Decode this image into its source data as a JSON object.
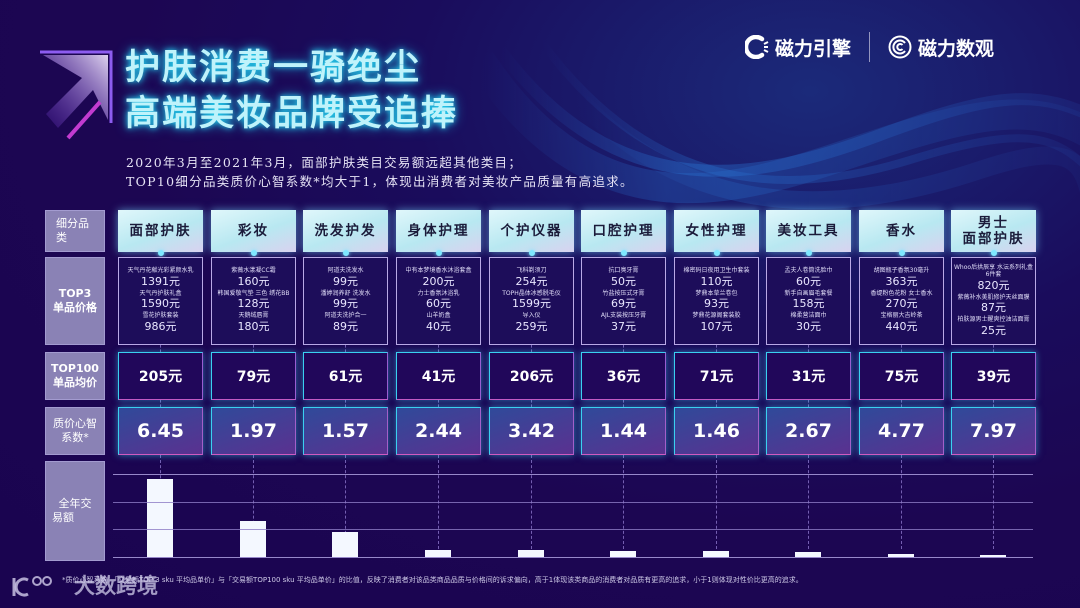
{
  "title": {
    "line1": "护肤消费一骑绝尘",
    "line2": "高端美妆品牌受追捧"
  },
  "subtitle": {
    "line1": "2020年3月至2021年3月，面部护肤类目交易额远超其他类目；",
    "line2": "TOP10细分品类质价心智系数*均大于1，体现出消费者对美妆产品质量有高追求。"
  },
  "brands": [
    {
      "name": "磁力引擎",
      "icon": "c-spinner-icon"
    },
    {
      "name": "磁力数观",
      "icon": "concentric-c-icon"
    }
  ],
  "row_labels": {
    "category": "细分品类",
    "top3": "TOP3\n单品价格",
    "top3_line1": "TOP3",
    "top3_line2": "单品价格",
    "top100_line1": "TOP100",
    "top100_line2": "单品均价",
    "coef_line1": "质价心智",
    "coef_line2": "系数*",
    "sales_line1": "全年交",
    "sales_line2": "易额"
  },
  "categories": [
    {
      "name": "面部护肤",
      "top3": [
        {
          "product": "天气丹花献光彩紧颜水乳",
          "price": "1391元"
        },
        {
          "product": "天气丹护肤礼盒",
          "price": "1590元"
        },
        {
          "product": "雪花护肤套装",
          "price": "986元"
        }
      ],
      "top100_avg": "205元",
      "coef": "6.45"
    },
    {
      "name": "彩妆",
      "top3": [
        {
          "product": "紫薇水漾凝CC霜",
          "price": "160元"
        },
        {
          "product": "韩国爱敬气垫 三色 绣花BB",
          "price": "128元"
        },
        {
          "product": "天鹅绒唇膏",
          "price": "180元"
        }
      ],
      "top100_avg": "79元",
      "coef": "1.97"
    },
    {
      "name": "洗发护发",
      "top3": [
        {
          "product": "阿道夫洗发水",
          "price": "99元"
        },
        {
          "product": "潘婷润养舒 洗发水",
          "price": "99元"
        },
        {
          "product": "阿道夫洗护合一",
          "price": "89元"
        }
      ],
      "top100_avg": "61元",
      "coef": "1.57"
    },
    {
      "name": "身体护理",
      "top3": [
        {
          "product": "中有本梦境香水沐浴套盒",
          "price": "200元"
        },
        {
          "product": "力士香氛沐浴乳",
          "price": "60元"
        },
        {
          "product": "山羊奶盒",
          "price": "40元"
        }
      ],
      "top100_avg": "41元",
      "coef": "2.44"
    },
    {
      "name": "个护仪器",
      "top3": [
        {
          "product": "飞科剃须刀",
          "price": "254元"
        },
        {
          "product": "TOPH晶体冰感脱毛仪",
          "price": "1599元"
        },
        {
          "product": "导入仪",
          "price": "259元"
        }
      ],
      "top100_avg": "206元",
      "coef": "3.42"
    },
    {
      "name": "口腔护理",
      "top3": [
        {
          "product": "抗口臭牙膏",
          "price": "50元"
        },
        {
          "product": "竹盐按压式牙膏",
          "price": "69元"
        },
        {
          "product": "AJL支装按压牙膏",
          "price": "37元"
        }
      ],
      "top100_avg": "36元",
      "coef": "1.44"
    },
    {
      "name": "女性护理",
      "top3": [
        {
          "product": "棉密码日夜用卫生巾套装",
          "price": "110元"
        },
        {
          "product": "梦鼎本草兰卷包",
          "price": "93元"
        },
        {
          "product": "梦鼎花源阁套装胶",
          "price": "107元"
        }
      ],
      "top100_avg": "71元",
      "coef": "1.46"
    },
    {
      "name": "美妆工具",
      "top3": [
        {
          "product": "孟夫人卷筒洗脸巾",
          "price": "60元"
        },
        {
          "product": "新手自画眉毛套餐",
          "price": "158元"
        },
        {
          "product": "棉柔营洁面巾",
          "price": "30元"
        }
      ],
      "top100_avg": "31元",
      "coef": "2.67"
    },
    {
      "name": "香水",
      "top3": [
        {
          "product": "胡图瓶子香氛30毫升",
          "price": "363元"
        },
        {
          "product": "香缇粉色花粉 女士香水",
          "price": "270元"
        },
        {
          "product": "宝格丽大吉岭茶",
          "price": "440元"
        }
      ],
      "top100_avg": "75元",
      "coef": "4.77"
    },
    {
      "name": "男士\n面部护肤",
      "name_line1": "男士",
      "name_line2": "面部护肤",
      "top3": [
        {
          "product": "Whoo后拱辰享 水沄系列礼盒6件套",
          "price": "820元"
        },
        {
          "product": "紫薇补水美肌修护天丝面膜",
          "price": "87元"
        },
        {
          "product": "柏肤源男士醒爽控油洁面膏",
          "price": "25元"
        }
      ],
      "top100_avg": "39元",
      "coef": "7.97"
    }
  ],
  "footnote": "*质价心智系数：「交易额TOP 3 sku 平均品单价」与「交易额TOP100 sku 平均品单价」的比值，反映了消费者对该品类商品品质与价格间的诉求偏向，高于1体现该类商品的消费者对品质有更高的追求，小于1则体现对性价比更高的追求。",
  "watermark": {
    "logo": "100",
    "text": "大数跨境"
  },
  "colors": {
    "background": "#1c0652",
    "title_glow": "#27d7f2",
    "label_bg": "#8a82b5",
    "avg_border": "#3ad0f0",
    "bar": "#f4f8ff"
  },
  "chart_data": {
    "type": "bar",
    "title": "全年交易额",
    "categories": [
      "面部护肤",
      "彩妆",
      "洗发护发",
      "身体护理",
      "个护仪器",
      "口腔护理",
      "女性护理",
      "美妆工具",
      "香水",
      "男士面部护肤"
    ],
    "values": [
      94,
      43,
      30,
      9,
      8,
      7,
      7,
      6,
      4,
      2
    ],
    "value_note": "relative bar heights (% of top gridline); no numeric axis shown",
    "xlabel": "",
    "ylabel": "全年交易额",
    "ylim": [
      0,
      100
    ],
    "grid": true,
    "gridlines_y": [
      0,
      33,
      66,
      100
    ],
    "legend": "none",
    "table_rows": {
      "top100_avg_price": [
        205,
        79,
        61,
        41,
        206,
        36,
        71,
        31,
        75,
        39
      ],
      "quality_price_coefficient": [
        6.45,
        1.97,
        1.57,
        2.44,
        3.42,
        1.44,
        1.46,
        2.67,
        4.77,
        7.97
      ]
    }
  }
}
